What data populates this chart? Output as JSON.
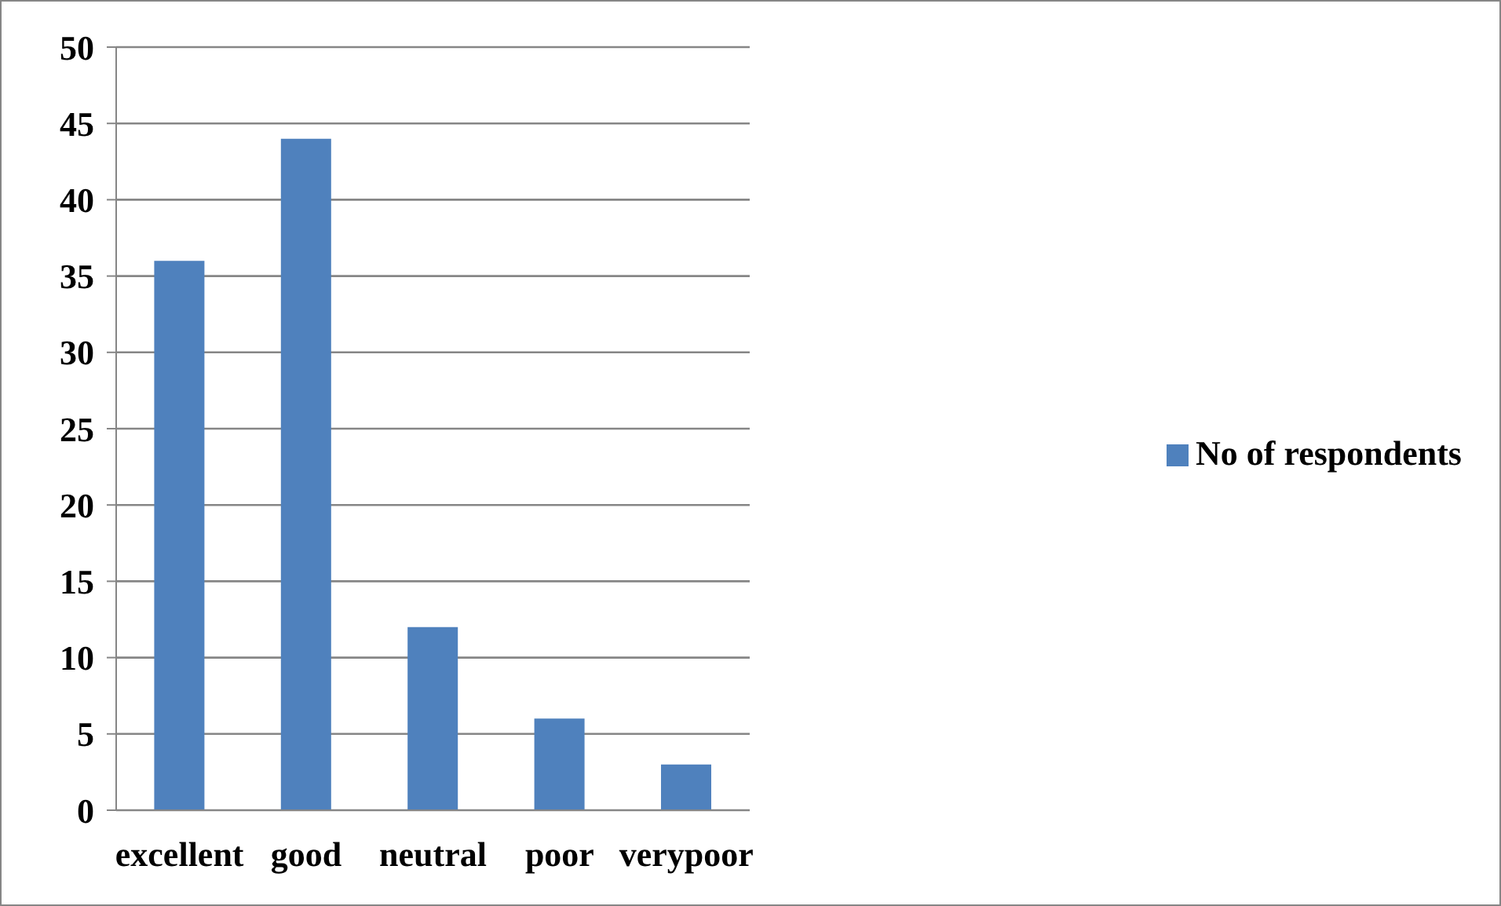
{
  "chart_data": {
    "type": "bar",
    "categories": [
      "excellent",
      "good",
      "neutral",
      "poor",
      "verypoor"
    ],
    "series": [
      {
        "name": "No of respondents",
        "color": "#4f81bd",
        "values": [
          36,
          44,
          12,
          6,
          3
        ]
      }
    ],
    "ylim": [
      0,
      50
    ],
    "yticks": [
      0,
      5,
      10,
      15,
      20,
      25,
      30,
      35,
      40,
      45,
      50
    ],
    "grid": "y",
    "legend": "right"
  }
}
